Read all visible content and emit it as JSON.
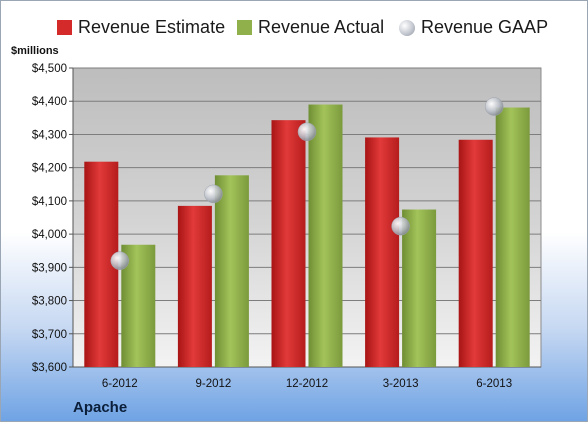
{
  "chart_data": {
    "type": "bar",
    "title": "",
    "units_label": "$millions",
    "company": "Apache",
    "categories": [
      "6-2012",
      "9-2012",
      "12-2012",
      "3-2013",
      "6-2013"
    ],
    "series": [
      {
        "name": "Revenue Estimate",
        "kind": "bar",
        "color": "#d42a2a",
        "values": [
          4218,
          4085,
          4343,
          4291,
          4284
        ]
      },
      {
        "name": "Revenue Actual",
        "kind": "bar",
        "color": "#8fb04a",
        "values": [
          3968,
          4177,
          4390,
          4074,
          4381
        ]
      },
      {
        "name": "Revenue GAAP",
        "kind": "scatter",
        "color": "#b9bec7",
        "values": [
          3920,
          4121,
          4308,
          4024,
          4384
        ]
      }
    ],
    "y_ticks": [
      "$3,600",
      "$3,700",
      "$3,800",
      "$3,900",
      "$4,000",
      "$4,100",
      "$4,200",
      "$4,300",
      "$4,400",
      "$4,500"
    ],
    "ylim": [
      3600,
      4500
    ],
    "grid": true,
    "legend_position": "top"
  }
}
